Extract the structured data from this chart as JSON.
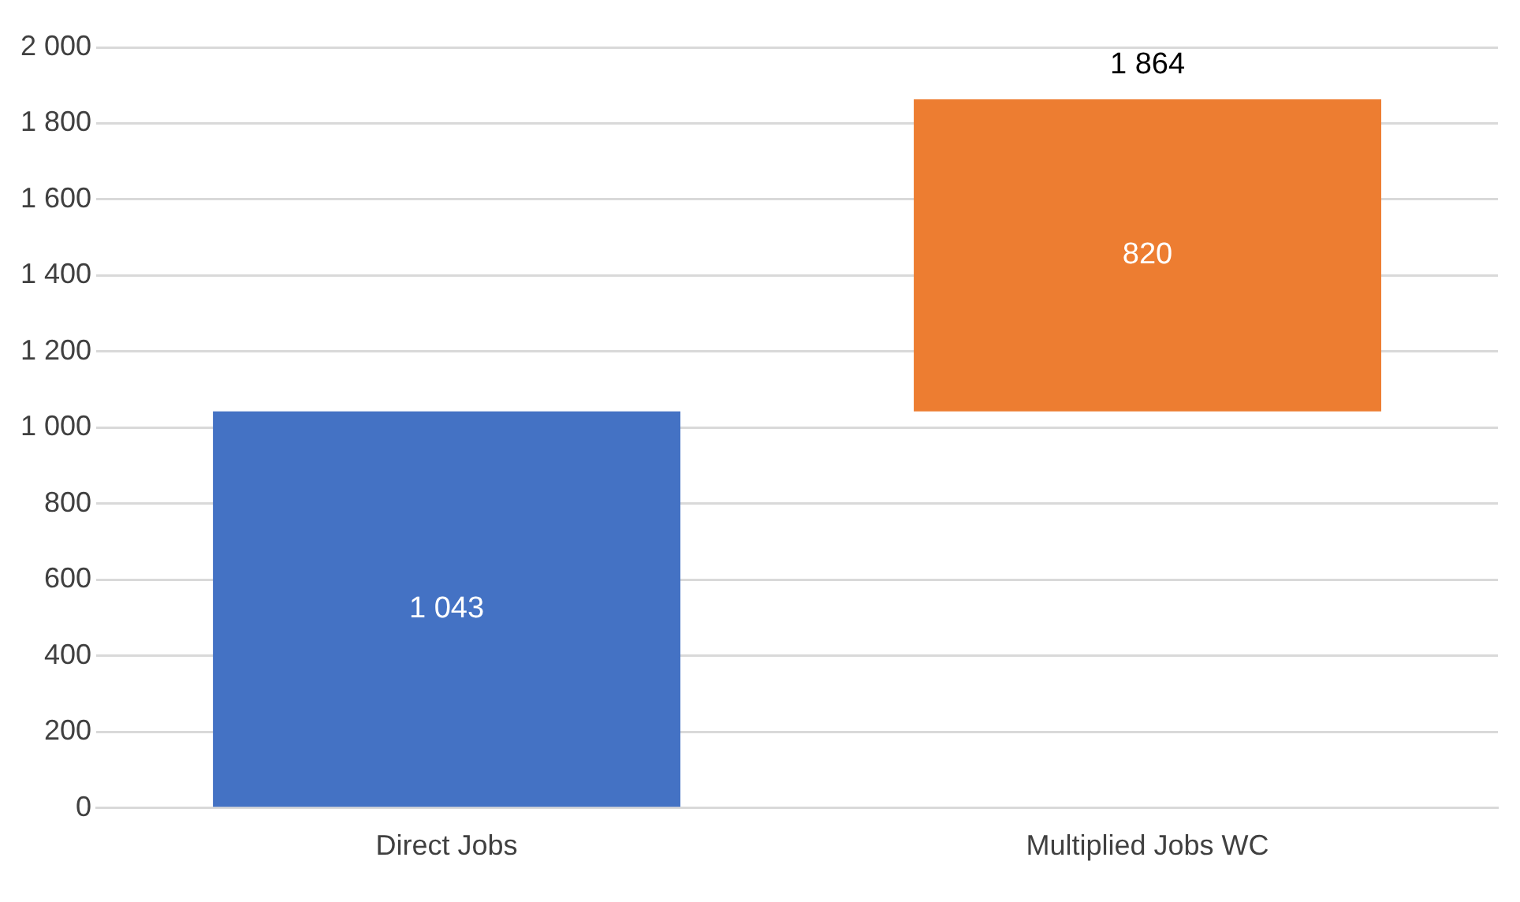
{
  "chart_data": {
    "type": "bar",
    "categories": [
      "Direct Jobs",
      "Multiplied Jobs WC"
    ],
    "values": [
      1043,
      820
    ],
    "base": [
      0,
      1043
    ],
    "colors": [
      "#4472c4",
      "#ed7d31"
    ],
    "value_labels": [
      "1 043",
      "820"
    ],
    "annotations": [
      {
        "text": "1 864",
        "x": "Multiplied Jobs WC",
        "y": 1864
      }
    ],
    "ylim": [
      0,
      2000
    ],
    "yticks": [
      {
        "value": 0,
        "label": "0"
      },
      {
        "value": 200,
        "label": "200"
      },
      {
        "value": 400,
        "label": "400"
      },
      {
        "value": 600,
        "label": "600"
      },
      {
        "value": 800,
        "label": "800"
      },
      {
        "value": 1000,
        "label": "1 000"
      },
      {
        "value": 1200,
        "label": "1 200"
      },
      {
        "value": 1400,
        "label": "1 400"
      },
      {
        "value": 1600,
        "label": "1 600"
      },
      {
        "value": 1800,
        "label": "1 800"
      },
      {
        "value": 2000,
        "label": "2 000"
      }
    ],
    "grid": "y"
  }
}
